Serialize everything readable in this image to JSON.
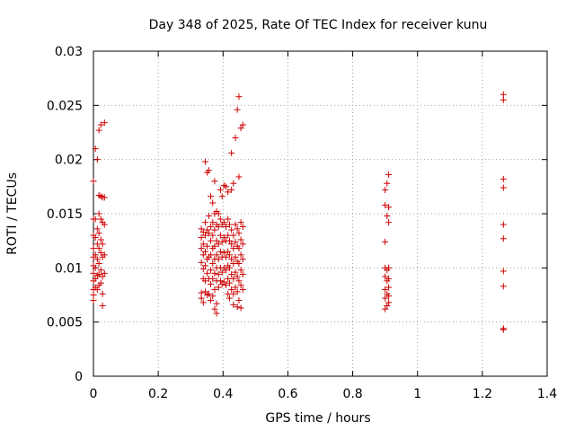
{
  "chart_data": {
    "type": "scatter",
    "title": "Day 348 of 2025, Rate Of TEC Index for receiver kunu",
    "xlabel": "GPS time / hours",
    "ylabel": "ROTI / TECUs",
    "xlim": [
      0,
      1.4
    ],
    "ylim": [
      0,
      0.03
    ],
    "x_ticks": [
      0,
      0.2,
      0.4,
      0.6,
      0.8,
      1,
      1.2,
      1.4
    ],
    "x_tick_labels": [
      "0",
      "0.2",
      "0.4",
      "0.6",
      "0.8",
      "1",
      "1.2",
      "1.4"
    ],
    "y_ticks": [
      0,
      0.005,
      0.01,
      0.015,
      0.02,
      0.025,
      0.03
    ],
    "y_tick_labels": [
      "0",
      "0.005",
      "0.01",
      "0.015",
      "0.02",
      "0.025",
      "0.03"
    ],
    "grid": true,
    "marker": "+",
    "color": "#cc0000",
    "series": [
      {
        "name": "ROTI",
        "points": [
          [
            0.0,
            0.018
          ],
          [
            0.0,
            0.0145
          ],
          [
            0.0,
            0.013
          ],
          [
            0.0,
            0.0118
          ],
          [
            0.0,
            0.011
          ],
          [
            0.0,
            0.0102
          ],
          [
            0.0,
            0.0095
          ],
          [
            0.0,
            0.0088
          ],
          [
            0.0,
            0.008
          ],
          [
            0.0,
            0.0075
          ],
          [
            0.0,
            0.007
          ],
          [
            0.006,
            0.021
          ],
          [
            0.006,
            0.0145
          ],
          [
            0.006,
            0.0128
          ],
          [
            0.006,
            0.0112
          ],
          [
            0.006,
            0.01
          ],
          [
            0.006,
            0.009
          ],
          [
            0.006,
            0.0082
          ],
          [
            0.012,
            0.02
          ],
          [
            0.012,
            0.0136
          ],
          [
            0.012,
            0.0122
          ],
          [
            0.012,
            0.0108
          ],
          [
            0.012,
            0.0093
          ],
          [
            0.012,
            0.008
          ],
          [
            0.017,
            0.0227
          ],
          [
            0.017,
            0.0167
          ],
          [
            0.017,
            0.015
          ],
          [
            0.017,
            0.0132
          ],
          [
            0.017,
            0.0118
          ],
          [
            0.017,
            0.0104
          ],
          [
            0.017,
            0.0094
          ],
          [
            0.017,
            0.0084
          ],
          [
            0.023,
            0.0232
          ],
          [
            0.023,
            0.0166
          ],
          [
            0.023,
            0.0145
          ],
          [
            0.023,
            0.0126
          ],
          [
            0.023,
            0.0114
          ],
          [
            0.023,
            0.0098
          ],
          [
            0.023,
            0.0086
          ],
          [
            0.028,
            0.0165
          ],
          [
            0.028,
            0.0142
          ],
          [
            0.028,
            0.0122
          ],
          [
            0.028,
            0.011
          ],
          [
            0.028,
            0.0092
          ],
          [
            0.028,
            0.0076
          ],
          [
            0.028,
            0.0065
          ],
          [
            0.034,
            0.0234
          ],
          [
            0.034,
            0.0165
          ],
          [
            0.034,
            0.014
          ],
          [
            0.034,
            0.0112
          ],
          [
            0.034,
            0.0095
          ],
          [
            0.333,
            0.0136
          ],
          [
            0.333,
            0.0128
          ],
          [
            0.333,
            0.0118
          ],
          [
            0.333,
            0.0105
          ],
          [
            0.333,
            0.0077
          ],
          [
            0.333,
            0.0072
          ],
          [
            0.339,
            0.0133
          ],
          [
            0.339,
            0.0122
          ],
          [
            0.339,
            0.0112
          ],
          [
            0.339,
            0.0099
          ],
          [
            0.339,
            0.009
          ],
          [
            0.339,
            0.0068
          ],
          [
            0.345,
            0.0198
          ],
          [
            0.345,
            0.0142
          ],
          [
            0.345,
            0.013
          ],
          [
            0.345,
            0.0115
          ],
          [
            0.345,
            0.0102
          ],
          [
            0.345,
            0.0088
          ],
          [
            0.345,
            0.0078
          ],
          [
            0.351,
            0.0188
          ],
          [
            0.351,
            0.0135
          ],
          [
            0.351,
            0.012
          ],
          [
            0.351,
            0.0108
          ],
          [
            0.351,
            0.0095
          ],
          [
            0.351,
            0.0075
          ],
          [
            0.356,
            0.019
          ],
          [
            0.356,
            0.0148
          ],
          [
            0.356,
            0.0132
          ],
          [
            0.356,
            0.011
          ],
          [
            0.356,
            0.009
          ],
          [
            0.356,
            0.0076
          ],
          [
            0.362,
            0.0166
          ],
          [
            0.362,
            0.0138
          ],
          [
            0.362,
            0.0125
          ],
          [
            0.362,
            0.0112
          ],
          [
            0.362,
            0.0098
          ],
          [
            0.362,
            0.0085
          ],
          [
            0.362,
            0.007
          ],
          [
            0.368,
            0.016
          ],
          [
            0.368,
            0.0142
          ],
          [
            0.368,
            0.013
          ],
          [
            0.368,
            0.0118
          ],
          [
            0.368,
            0.0104
          ],
          [
            0.368,
            0.009
          ],
          [
            0.368,
            0.0074
          ],
          [
            0.374,
            0.018
          ],
          [
            0.374,
            0.015
          ],
          [
            0.374,
            0.0135
          ],
          [
            0.374,
            0.012
          ],
          [
            0.374,
            0.0108
          ],
          [
            0.374,
            0.0095
          ],
          [
            0.374,
            0.008
          ],
          [
            0.374,
            0.0062
          ],
          [
            0.38,
            0.0152
          ],
          [
            0.38,
            0.014
          ],
          [
            0.38,
            0.0125
          ],
          [
            0.38,
            0.0112
          ],
          [
            0.38,
            0.01
          ],
          [
            0.38,
            0.0088
          ],
          [
            0.38,
            0.0067
          ],
          [
            0.38,
            0.0058
          ],
          [
            0.386,
            0.015
          ],
          [
            0.386,
            0.0138
          ],
          [
            0.386,
            0.0122
          ],
          [
            0.386,
            0.0108
          ],
          [
            0.386,
            0.0094
          ],
          [
            0.386,
            0.0082
          ],
          [
            0.392,
            0.0172
          ],
          [
            0.392,
            0.0145
          ],
          [
            0.392,
            0.013
          ],
          [
            0.392,
            0.0115
          ],
          [
            0.392,
            0.01
          ],
          [
            0.392,
            0.0088
          ],
          [
            0.397,
            0.0166
          ],
          [
            0.397,
            0.014
          ],
          [
            0.397,
            0.0124
          ],
          [
            0.397,
            0.011
          ],
          [
            0.397,
            0.0096
          ],
          [
            0.397,
            0.0085
          ],
          [
            0.403,
            0.0176
          ],
          [
            0.403,
            0.0142
          ],
          [
            0.403,
            0.0128
          ],
          [
            0.403,
            0.0114
          ],
          [
            0.403,
            0.01
          ],
          [
            0.403,
            0.0087
          ],
          [
            0.409,
            0.0175
          ],
          [
            0.409,
            0.0138
          ],
          [
            0.409,
            0.0125
          ],
          [
            0.409,
            0.011
          ],
          [
            0.409,
            0.0098
          ],
          [
            0.409,
            0.0084
          ],
          [
            0.415,
            0.017
          ],
          [
            0.415,
            0.0145
          ],
          [
            0.415,
            0.013
          ],
          [
            0.415,
            0.0115
          ],
          [
            0.415,
            0.0102
          ],
          [
            0.415,
            0.009
          ],
          [
            0.415,
            0.0076
          ],
          [
            0.42,
            0.014
          ],
          [
            0.42,
            0.0125
          ],
          [
            0.42,
            0.0112
          ],
          [
            0.42,
            0.01
          ],
          [
            0.42,
            0.0086
          ],
          [
            0.42,
            0.0072
          ],
          [
            0.426,
            0.0206
          ],
          [
            0.426,
            0.0172
          ],
          [
            0.426,
            0.0135
          ],
          [
            0.426,
            0.0122
          ],
          [
            0.426,
            0.0108
          ],
          [
            0.426,
            0.0094
          ],
          [
            0.426,
            0.008
          ],
          [
            0.432,
            0.0178
          ],
          [
            0.432,
            0.013
          ],
          [
            0.432,
            0.0118
          ],
          [
            0.432,
            0.0104
          ],
          [
            0.432,
            0.009
          ],
          [
            0.432,
            0.0076
          ],
          [
            0.432,
            0.0066
          ],
          [
            0.438,
            0.022
          ],
          [
            0.438,
            0.014
          ],
          [
            0.438,
            0.0124
          ],
          [
            0.438,
            0.011
          ],
          [
            0.438,
            0.0096
          ],
          [
            0.438,
            0.0082
          ],
          [
            0.444,
            0.0246
          ],
          [
            0.444,
            0.0136
          ],
          [
            0.444,
            0.012
          ],
          [
            0.444,
            0.0106
          ],
          [
            0.444,
            0.0092
          ],
          [
            0.444,
            0.0078
          ],
          [
            0.444,
            0.0064
          ],
          [
            0.449,
            0.0258
          ],
          [
            0.449,
            0.0184
          ],
          [
            0.449,
            0.0132
          ],
          [
            0.449,
            0.0118
          ],
          [
            0.449,
            0.0104
          ],
          [
            0.449,
            0.0088
          ],
          [
            0.449,
            0.007
          ],
          [
            0.455,
            0.0229
          ],
          [
            0.455,
            0.0142
          ],
          [
            0.455,
            0.0126
          ],
          [
            0.455,
            0.0112
          ],
          [
            0.455,
            0.0098
          ],
          [
            0.455,
            0.0084
          ],
          [
            0.455,
            0.0063
          ],
          [
            0.461,
            0.0232
          ],
          [
            0.461,
            0.0138
          ],
          [
            0.461,
            0.0122
          ],
          [
            0.461,
            0.0108
          ],
          [
            0.461,
            0.0094
          ],
          [
            0.461,
            0.008
          ],
          [
            0.9,
            0.0172
          ],
          [
            0.9,
            0.0158
          ],
          [
            0.9,
            0.0124
          ],
          [
            0.9,
            0.01
          ],
          [
            0.9,
            0.0092
          ],
          [
            0.9,
            0.008
          ],
          [
            0.9,
            0.0072
          ],
          [
            0.9,
            0.0062
          ],
          [
            0.906,
            0.0178
          ],
          [
            0.906,
            0.0148
          ],
          [
            0.906,
            0.0098
          ],
          [
            0.906,
            0.0088
          ],
          [
            0.906,
            0.0076
          ],
          [
            0.906,
            0.0065
          ],
          [
            0.911,
            0.0186
          ],
          [
            0.911,
            0.0156
          ],
          [
            0.911,
            0.0142
          ],
          [
            0.911,
            0.01
          ],
          [
            0.911,
            0.009
          ],
          [
            0.911,
            0.0082
          ],
          [
            0.911,
            0.0074
          ],
          [
            0.911,
            0.0068
          ],
          [
            1.265,
            0.026
          ],
          [
            1.265,
            0.0255
          ],
          [
            1.265,
            0.0182
          ],
          [
            1.265,
            0.0174
          ],
          [
            1.265,
            0.014
          ],
          [
            1.265,
            0.0127
          ],
          [
            1.265,
            0.0097
          ],
          [
            1.265,
            0.0083
          ],
          [
            1.265,
            0.0044
          ],
          [
            1.265,
            0.0043
          ]
        ]
      }
    ]
  }
}
